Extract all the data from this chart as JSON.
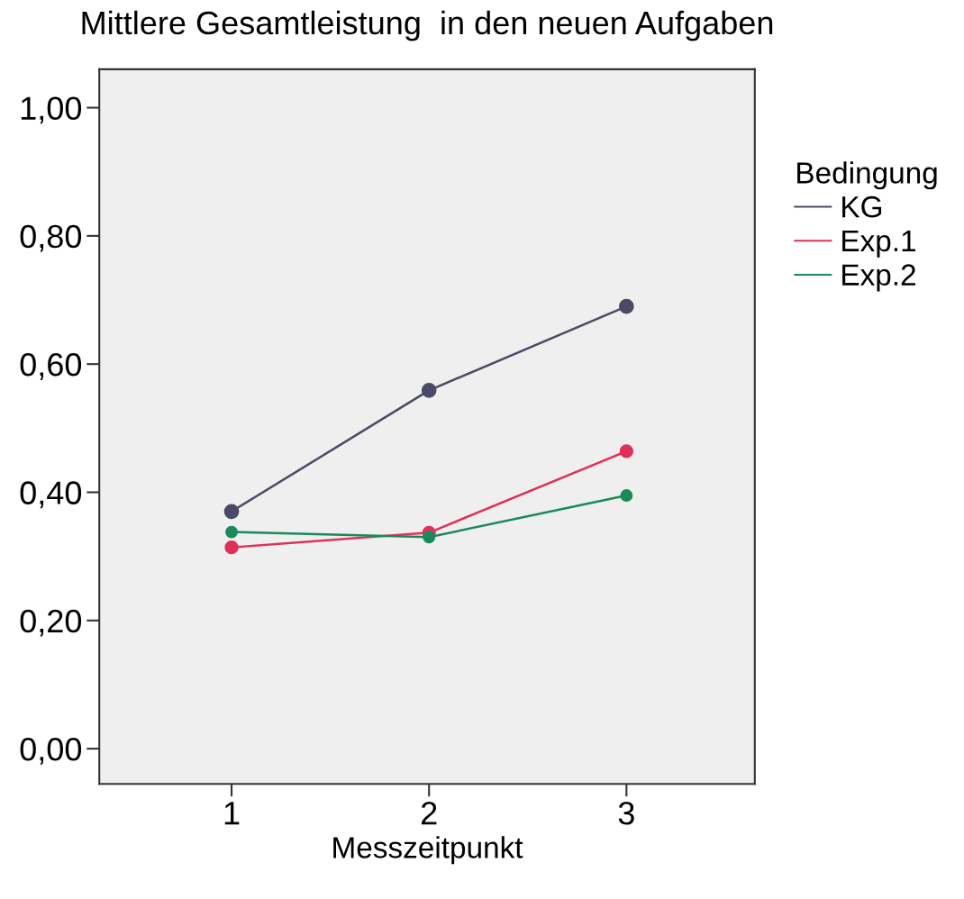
{
  "chart_data": {
    "type": "line",
    "title": "Mittlere Gesamtleistung  in den neuen Aufgaben",
    "xlabel": "Messzeitpunkt",
    "x": [
      1,
      2,
      3
    ],
    "xlim": [
      0.33,
      3.65
    ],
    "xticks": [
      1,
      2,
      3
    ],
    "ylim": [
      -0.055,
      1.06
    ],
    "yticks": [
      {
        "value": 0,
        "label": "0,00"
      },
      {
        "value": 0.2,
        "label": "0,20"
      },
      {
        "value": 0.4,
        "label": "0,40"
      },
      {
        "value": 0.6,
        "label": "0,60"
      },
      {
        "value": 0.8,
        "label": "0,80"
      },
      {
        "value": 1.0,
        "label": "1,00"
      }
    ],
    "legend_title": "Bedingung",
    "legend": "right",
    "marker": "circle",
    "grid": false,
    "series": [
      {
        "name": "KG",
        "color": "#4a4a66",
        "values": [
          0.37,
          0.559,
          0.69
        ]
      },
      {
        "name": "Exp.1",
        "color": "#e0305a",
        "values": [
          0.314,
          0.337,
          0.464
        ]
      },
      {
        "name": "Exp.2",
        "color": "#1a8a5a",
        "values": [
          0.338,
          0.33,
          0.395
        ]
      }
    ]
  }
}
